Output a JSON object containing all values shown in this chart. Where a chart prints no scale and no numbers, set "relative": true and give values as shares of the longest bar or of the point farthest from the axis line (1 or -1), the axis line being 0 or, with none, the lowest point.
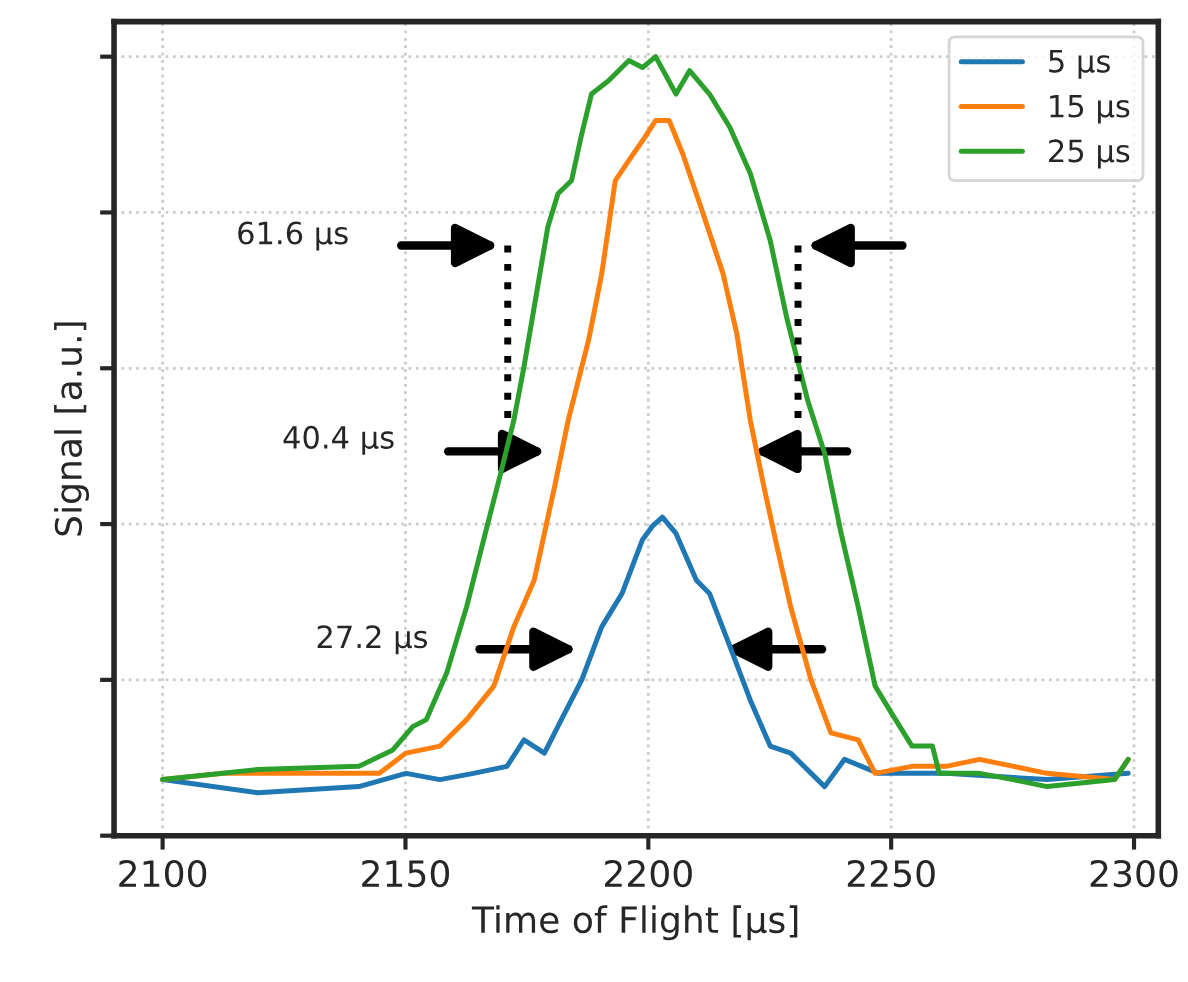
{
  "chart_data": {
    "type": "line",
    "relative": true,
    "xlabel": "Time of Flight [µs]",
    "ylabel": "Signal [a.u.]",
    "xlim": [
      2090,
      2305
    ],
    "xticks": [
      2100,
      2150,
      2200,
      2250,
      2300
    ],
    "grid": true,
    "legend": "top right",
    "tick_labels": "x",
    "series": [
      {
        "name": "5 µs",
        "color": "#1f77b4",
        "x": [
          2100,
          2119.6,
          2140.4,
          2150.1,
          2157.1,
          2164.0,
          2170.9,
          2174.4,
          2178.6,
          2182.1,
          2186.3,
          2190.4,
          2194.6,
          2198.8,
          2200.8,
          2202.9,
          2205.7,
          2209.9,
          2212.6,
          2216.8,
          2221.0,
          2225.1,
          2229.3,
          2236.3,
          2240.4,
          2247.4,
          2261.3,
          2282.1,
          2298.8
        ],
        "values": [
          0.072,
          0.055,
          0.063,
          0.08,
          0.072,
          0.08,
          0.089,
          0.123,
          0.106,
          0.149,
          0.2,
          0.268,
          0.311,
          0.38,
          0.397,
          0.409,
          0.388,
          0.328,
          0.311,
          0.243,
          0.174,
          0.115,
          0.106,
          0.063,
          0.098,
          0.08,
          0.08,
          0.072,
          0.08
        ]
      },
      {
        "name": "15 µs",
        "color": "#ff7f0e",
        "x": [
          2100,
          2112.6,
          2133.5,
          2144.6,
          2150.1,
          2157.1,
          2162.6,
          2168.2,
          2172.3,
          2176.5,
          2180.7,
          2183.5,
          2187.7,
          2190.4,
          2193.2,
          2196.0,
          2198.8,
          2201.5,
          2204.3,
          2207.1,
          2211.3,
          2215.4,
          2218.2,
          2221.0,
          2223.8,
          2226.5,
          2229.3,
          2233.5,
          2237.6,
          2243.2,
          2246.7,
          2254.3,
          2261.3,
          2268.2,
          2282.1,
          2296.0,
          2298.8
        ],
        "values": [
          0.072,
          0.08,
          0.08,
          0.08,
          0.106,
          0.115,
          0.149,
          0.192,
          0.268,
          0.328,
          0.448,
          0.533,
          0.636,
          0.721,
          0.841,
          0.867,
          0.892,
          0.918,
          0.918,
          0.875,
          0.798,
          0.721,
          0.645,
          0.533,
          0.448,
          0.371,
          0.294,
          0.2,
          0.132,
          0.123,
          0.08,
          0.089,
          0.089,
          0.098,
          0.08,
          0.072,
          0.098
        ]
      },
      {
        "name": "25 µs",
        "color": "#2ca02c",
        "x": [
          2100,
          2119.6,
          2140.4,
          2147.4,
          2151.5,
          2154.3,
          2158.5,
          2162.6,
          2166.8,
          2169.6,
          2172.3,
          2174.4,
          2177.2,
          2179.3,
          2181.4,
          2184.2,
          2186.3,
          2188.3,
          2191.8,
          2196.0,
          2198.8,
          2201.5,
          2205.7,
          2208.5,
          2212.6,
          2216.8,
          2221.0,
          2225.1,
          2228.6,
          2232.8,
          2236.3,
          2239.7,
          2243.2,
          2246.7,
          2250.1,
          2254.3,
          2258.5,
          2259.9,
          2268.2,
          2275.1,
          2282.1,
          2296.0,
          2298.8
        ],
        "values": [
          0.072,
          0.085,
          0.089,
          0.11,
          0.14,
          0.149,
          0.209,
          0.294,
          0.397,
          0.465,
          0.533,
          0.602,
          0.704,
          0.781,
          0.824,
          0.841,
          0.901,
          0.952,
          0.969,
          0.995,
          0.986,
          1.0,
          0.952,
          0.982,
          0.952,
          0.909,
          0.85,
          0.764,
          0.662,
          0.559,
          0.491,
          0.388,
          0.294,
          0.192,
          0.157,
          0.115,
          0.115,
          0.08,
          0.08,
          0.072,
          0.063,
          0.072,
          0.098
        ]
      }
    ],
    "annotations": [
      "61.6 µs",
      "40.4 µs",
      "27.2 µs"
    ]
  }
}
